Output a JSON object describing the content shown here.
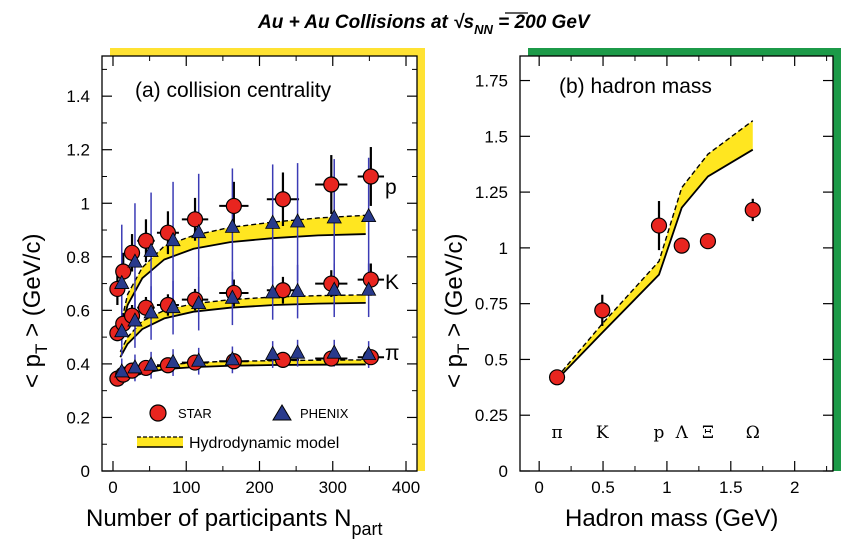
{
  "figure_title": "Au + Au Collisions at √s",
  "figure_title_sub": "NN",
  "figure_title_tail": " = 200 GeV",
  "colors": {
    "star": "#e8251f",
    "phenix": "#283a8c",
    "hydro_band": "#ffe620",
    "left_frame": "#ffe233",
    "right_frame": "#1c9a48",
    "phenix_err": "#3b3bb5"
  },
  "chart_data": [
    {
      "type": "scatter",
      "panel_label": "(a) collision centrality",
      "xlabel": "Number of participants N",
      "xlabel_sub": "part",
      "ylabel": "< p",
      "ylabel_sub": "T",
      "ylabel_tail": " > (GeV/c)",
      "xlim": [
        -15,
        415
      ],
      "ylim": [
        0,
        1.55
      ],
      "xticks": [
        "0",
        "100",
        "200",
        "300",
        "400"
      ],
      "yticks": [
        "0",
        "0.2",
        "0.4",
        "0.6",
        "0.8",
        "1",
        "1.2",
        "1.4"
      ],
      "species_labels": [
        "p",
        "K",
        "π"
      ],
      "legend": {
        "star": "STAR",
        "phenix": "PHENIX",
        "model": "Hydrodynamic model"
      },
      "series": [
        {
          "name": "STAR",
          "species": "π",
          "x": [
            6,
            14,
            26,
            45,
            75,
            112,
            165,
            232,
            298,
            352
          ],
          "y": [
            0.345,
            0.36,
            0.375,
            0.385,
            0.395,
            0.405,
            0.41,
            0.415,
            0.42,
            0.425
          ],
          "yerr": [
            0.02,
            0.02,
            0.02,
            0.02,
            0.02,
            0.02,
            0.02,
            0.02,
            0.02,
            0.02
          ],
          "xerr": [
            3,
            5,
            8,
            12,
            15,
            18,
            20,
            22,
            22,
            18
          ]
        },
        {
          "name": "STAR",
          "species": "K",
          "x": [
            6,
            14,
            26,
            45,
            75,
            112,
            165,
            232,
            298,
            352
          ],
          "y": [
            0.515,
            0.55,
            0.58,
            0.61,
            0.62,
            0.64,
            0.665,
            0.675,
            0.7,
            0.715
          ],
          "yerr": [
            0.03,
            0.04,
            0.04,
            0.04,
            0.04,
            0.04,
            0.05,
            0.05,
            0.05,
            0.06
          ],
          "xerr": [
            3,
            5,
            8,
            12,
            15,
            18,
            20,
            22,
            22,
            18
          ]
        },
        {
          "name": "STAR",
          "species": "p",
          "x": [
            6,
            14,
            26,
            45,
            75,
            112,
            165,
            232,
            298,
            352
          ],
          "y": [
            0.68,
            0.745,
            0.815,
            0.86,
            0.89,
            0.94,
            0.99,
            1.015,
            1.07,
            1.1
          ],
          "yerr": [
            0.06,
            0.07,
            0.07,
            0.08,
            0.08,
            0.08,
            0.09,
            0.1,
            0.11,
            0.11
          ],
          "xerr": [
            3,
            5,
            8,
            12,
            15,
            18,
            20,
            22,
            22,
            18
          ]
        },
        {
          "name": "PHENIX",
          "species": "π",
          "x": [
            12,
            30,
            52,
            82,
            117,
            163,
            218,
            252,
            302,
            349
          ],
          "y": [
            0.37,
            0.385,
            0.395,
            0.405,
            0.41,
            0.415,
            0.435,
            0.44,
            0.44,
            0.435
          ],
          "yerr": [
            0.05,
            0.05,
            0.05,
            0.05,
            0.05,
            0.05,
            0.05,
            0.05,
            0.05,
            0.05
          ]
        },
        {
          "name": "PHENIX",
          "species": "K",
          "x": [
            12,
            30,
            52,
            82,
            117,
            163,
            218,
            252,
            302,
            349
          ],
          "y": [
            0.52,
            0.56,
            0.59,
            0.61,
            0.625,
            0.645,
            0.665,
            0.67,
            0.675,
            0.675
          ],
          "yerr": [
            0.09,
            0.1,
            0.1,
            0.1,
            0.1,
            0.1,
            0.1,
            0.1,
            0.1,
            0.1
          ]
        },
        {
          "name": "PHENIX",
          "species": "p",
          "x": [
            12,
            30,
            52,
            82,
            117,
            163,
            218,
            252,
            302,
            349
          ],
          "y": [
            0.7,
            0.78,
            0.82,
            0.86,
            0.89,
            0.91,
            0.925,
            0.93,
            0.945,
            0.95
          ],
          "yerr": [
            0.22,
            0.22,
            0.22,
            0.22,
            0.22,
            0.22,
            0.22,
            0.22,
            0.22,
            0.22
          ]
        }
      ],
      "model_bands": [
        {
          "species": "π",
          "x": [
            10,
            20,
            40,
            70,
            110,
            160,
            220,
            280,
            345
          ],
          "lower": [
            0.325,
            0.345,
            0.365,
            0.38,
            0.388,
            0.393,
            0.396,
            0.397,
            0.398
          ],
          "upper": [
            0.335,
            0.36,
            0.38,
            0.395,
            0.405,
            0.41,
            0.412,
            0.414,
            0.415
          ]
        },
        {
          "species": "K",
          "x": [
            10,
            20,
            40,
            70,
            110,
            160,
            220,
            280,
            345
          ],
          "lower": [
            0.425,
            0.475,
            0.53,
            0.57,
            0.595,
            0.61,
            0.62,
            0.625,
            0.628
          ],
          "upper": [
            0.445,
            0.5,
            0.56,
            0.6,
            0.625,
            0.64,
            0.65,
            0.655,
            0.658
          ]
        },
        {
          "species": "p",
          "x": [
            10,
            20,
            40,
            70,
            110,
            160,
            220,
            280,
            345
          ],
          "lower": [
            0.52,
            0.62,
            0.72,
            0.79,
            0.83,
            0.855,
            0.87,
            0.88,
            0.885
          ],
          "upper": [
            0.54,
            0.66,
            0.76,
            0.84,
            0.88,
            0.91,
            0.93,
            0.945,
            0.955
          ]
        }
      ]
    },
    {
      "type": "scatter",
      "panel_label": "(b) hadron mass",
      "xlabel": "Hadron mass (GeV)",
      "ylabel": "< p",
      "ylabel_sub": "T",
      "ylabel_tail": " > (GeV/c)",
      "xlim": [
        -0.15,
        2.3
      ],
      "ylim": [
        0,
        1.86
      ],
      "xticks": [
        "0",
        "0.5",
        "1",
        "1.5",
        "2"
      ],
      "yticks": [
        "0",
        "0.25",
        "0.5",
        "0.75",
        "1",
        "1.25",
        "1.5",
        "1.75"
      ],
      "particle_labels": [
        {
          "label": "π",
          "mass": 0.14
        },
        {
          "label": "K",
          "mass": 0.494
        },
        {
          "label": "p",
          "mass": 0.938
        },
        {
          "label": "Λ",
          "mass": 1.116
        },
        {
          "label": "Ξ",
          "mass": 1.321
        },
        {
          "label": "Ω",
          "mass": 1.672
        }
      ],
      "series": [
        {
          "name": "STAR",
          "x": [
            0.14,
            0.494,
            0.938,
            1.116,
            1.321,
            1.672
          ],
          "y": [
            0.42,
            0.72,
            1.1,
            1.01,
            1.03,
            1.17
          ],
          "yerr": [
            0.02,
            0.07,
            0.11,
            0.02,
            0.02,
            0.05
          ]
        }
      ],
      "model_band": {
        "x": [
          0.14,
          0.494,
          0.938,
          1.116,
          1.321,
          1.672
        ],
        "lower": [
          0.41,
          0.62,
          0.88,
          1.18,
          1.32,
          1.44
        ],
        "upper": [
          0.42,
          0.66,
          0.94,
          1.27,
          1.42,
          1.57
        ]
      }
    }
  ]
}
